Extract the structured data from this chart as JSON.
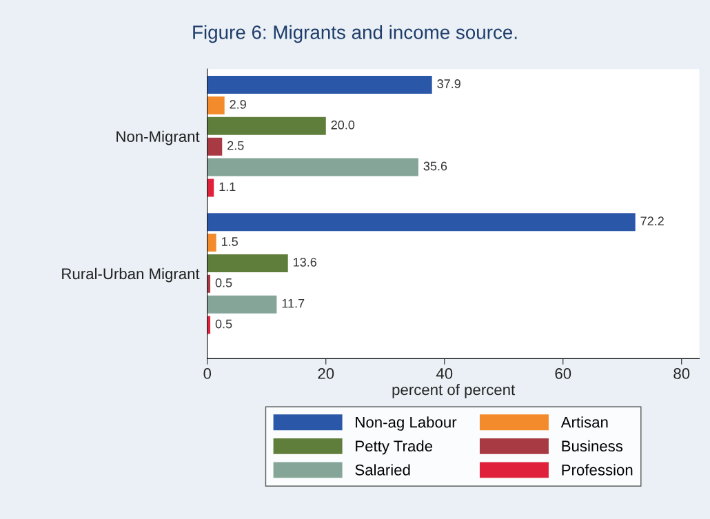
{
  "chart_data": {
    "type": "bar",
    "orientation": "horizontal",
    "title": "Figure 6: Migrants and income source.",
    "xlabel": "percent of percent",
    "categories": [
      "Non-Migrant",
      "Rural-Urban Migrant"
    ],
    "series": [
      {
        "name": "Non-ag Labour",
        "color": "#2b57a9",
        "values": [
          37.9,
          72.2
        ],
        "value_labels": [
          "37.9",
          "72.2"
        ]
      },
      {
        "name": "Artisan",
        "color": "#f38b2c",
        "values": [
          2.9,
          1.5
        ],
        "value_labels": [
          "2.9",
          "1.5"
        ]
      },
      {
        "name": "Petty Trade",
        "color": "#5f7e3b",
        "values": [
          20.0,
          13.6
        ],
        "value_labels": [
          "20.0",
          "13.6"
        ]
      },
      {
        "name": "Business",
        "color": "#a73a43",
        "values": [
          2.5,
          0.5
        ],
        "value_labels": [
          "2.5",
          "0.5"
        ]
      },
      {
        "name": "Salaried",
        "color": "#85a598",
        "values": [
          35.6,
          11.7
        ],
        "value_labels": [
          "35.6",
          "11.7"
        ]
      },
      {
        "name": "Profession",
        "color": "#e0213b",
        "values": [
          1.1,
          0.5
        ],
        "value_labels": [
          "1.1",
          "0.5"
        ]
      }
    ],
    "xlim": [
      0,
      83
    ],
    "xticks": [
      0,
      20,
      40,
      60,
      80
    ],
    "grid": false,
    "legend": "bottom"
  }
}
